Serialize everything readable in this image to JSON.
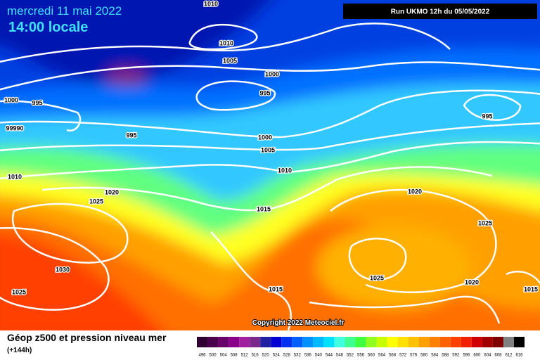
{
  "header": {
    "date": "mercredi 11 mai 2022",
    "time": "14:00 locale",
    "run": "Run UKMO 12h du 05/05/2022"
  },
  "map": {
    "isobar_labels": [
      "1010",
      "1010",
      "1005",
      "1000",
      "995",
      "1000",
      "995",
      "99990",
      "995",
      "1000",
      "1005",
      "1010",
      "1010",
      "1020",
      "1025",
      "1015",
      "1020",
      "1025",
      "995",
      "1030",
      "1025",
      "1020",
      "1015",
      "1015",
      "1025"
    ]
  },
  "footer": {
    "copyright": "Copyright 2022 Meteociel.fr",
    "title": "Géop z500 et pression niveau mer",
    "lead": "(+144h)",
    "scale": [
      {
        "label": "496",
        "color": "#300030"
      },
      {
        "label": "500",
        "color": "#4a004a"
      },
      {
        "label": "504",
        "color": "#6a006a"
      },
      {
        "label": "508",
        "color": "#8a008a"
      },
      {
        "label": "512",
        "color": "#a020a0"
      },
      {
        "label": "516",
        "color": "#7a2a8a"
      },
      {
        "label": "520",
        "color": "#2020a0"
      },
      {
        "label": "524",
        "color": "#0000d0"
      },
      {
        "label": "528",
        "color": "#0030f0"
      },
      {
        "label": "532",
        "color": "#0060ff"
      },
      {
        "label": "536",
        "color": "#0090ff"
      },
      {
        "label": "540",
        "color": "#00b8ff"
      },
      {
        "label": "544",
        "color": "#00e0ff"
      },
      {
        "label": "548",
        "color": "#40ffe0"
      },
      {
        "label": "552",
        "color": "#40ff90"
      },
      {
        "label": "556",
        "color": "#40ff40"
      },
      {
        "label": "560",
        "color": "#90ff20"
      },
      {
        "label": "564",
        "color": "#c8ff00"
      },
      {
        "label": "568",
        "color": "#ffff00"
      },
      {
        "label": "572",
        "color": "#ffe000"
      },
      {
        "label": "576",
        "color": "#ffc000"
      },
      {
        "label": "580",
        "color": "#ffa000"
      },
      {
        "label": "584",
        "color": "#ff8000"
      },
      {
        "label": "588",
        "color": "#ff6000"
      },
      {
        "label": "592",
        "color": "#ff4000"
      },
      {
        "label": "596",
        "color": "#f02000"
      },
      {
        "label": "600",
        "color": "#d00000"
      },
      {
        "label": "604",
        "color": "#a00000"
      },
      {
        "label": "608",
        "color": "#800000"
      },
      {
        "label": "612",
        "color": "#808080"
      },
      {
        "label": "616",
        "color": "#000000"
      }
    ]
  }
}
